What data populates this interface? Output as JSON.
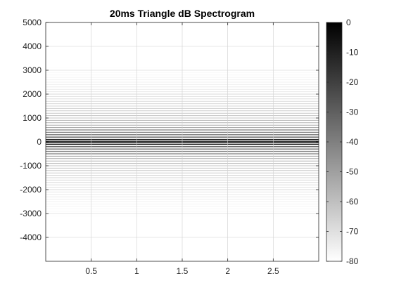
{
  "chart_data": {
    "type": "heatmap",
    "title": "20ms Triangle dB Spectrogram",
    "xlabel": "",
    "ylabel": "",
    "xlim": [
      0,
      3
    ],
    "ylim": [
      -5000,
      5000
    ],
    "x_ticks": [
      0.5,
      1,
      1.5,
      2,
      2.5
    ],
    "x_tick_labels": [
      "0.5",
      "1",
      "1.5",
      "2",
      "2.5"
    ],
    "y_ticks": [
      -4000,
      -3000,
      -2000,
      -1000,
      0,
      1000,
      2000,
      3000,
      4000,
      5000
    ],
    "y_tick_labels": [
      "-4000",
      "-3000",
      "-2000",
      "-1000",
      "0",
      "1000",
      "2000",
      "3000",
      "4000",
      "5000"
    ],
    "grid": true,
    "colormap": "gray-inverted",
    "colorbar": {
      "limits": [
        -80,
        0
      ],
      "ticks": [
        0,
        -10,
        -20,
        -30,
        -40,
        -50,
        -60,
        -70,
        -80
      ],
      "tick_labels": [
        "0",
        "-10",
        "-20",
        "-30",
        "-40",
        "-50",
        "-60",
        "-70",
        "-80"
      ]
    },
    "harmonic_spacing_hz": 100,
    "harmonic_min_db": -80
  }
}
